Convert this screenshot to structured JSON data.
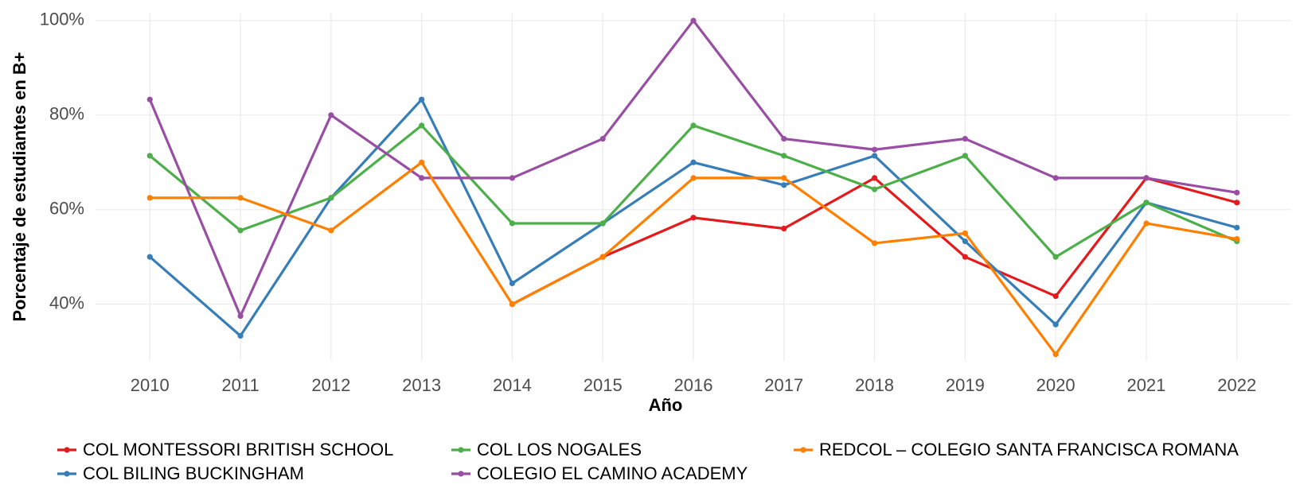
{
  "chart_data": {
    "type": "line",
    "ylabel": "Porcentaje de estudiantes en B+",
    "xlabel": "Año",
    "x": [
      2010,
      2011,
      2012,
      2013,
      2014,
      2015,
      2016,
      2017,
      2018,
      2019,
      2020,
      2021,
      2022
    ],
    "xlim": [
      2009.4,
      2022.6
    ],
    "xticks": [
      2010,
      2011,
      2012,
      2013,
      2014,
      2015,
      2016,
      2017,
      2018,
      2019,
      2020,
      2021,
      2022
    ],
    "ylim": [
      28,
      101.5
    ],
    "yticks": [
      {
        "value": 40,
        "label": "40%"
      },
      {
        "value": 60,
        "label": "60%"
      },
      {
        "value": 80,
        "label": "80%"
      },
      {
        "value": 100,
        "label": "100%"
      }
    ],
    "grid": true,
    "legend": "bottom",
    "series": [
      {
        "name": "COL  MONTESSORI BRITISH SCHOOL",
        "color": "#e41a1c",
        "values": [
          null,
          null,
          null,
          null,
          40,
          50,
          58.3,
          56,
          66.7,
          50,
          41.7,
          66.7,
          61.5
        ]
      },
      {
        "name": "COL BILING BUCKINGHAM",
        "color": "#377eb8",
        "values": [
          50,
          33.3,
          62.5,
          83.3,
          44.4,
          57.1,
          70,
          65.2,
          71.4,
          53.3,
          35.7,
          61.5,
          56.2
        ]
      },
      {
        "name": "COL LOS NOGALES",
        "color": "#4daf4a",
        "values": [
          71.4,
          55.6,
          62.5,
          77.8,
          57.1,
          57.1,
          77.8,
          71.4,
          64.3,
          71.4,
          50,
          61.5,
          53.3
        ]
      },
      {
        "name": "COLEGIO EL CAMINO ACADEMY",
        "color": "#984ea3",
        "values": [
          83.3,
          37.5,
          80,
          66.7,
          66.7,
          75,
          100,
          75,
          72.7,
          75,
          66.7,
          66.7,
          63.6
        ]
      },
      {
        "name": "REDCOL – COLEGIO SANTA FRANCISCA ROMANA",
        "color": "#ff7f00",
        "values": [
          62.5,
          62.5,
          55.6,
          70,
          40,
          50,
          66.7,
          66.7,
          52.9,
          55,
          29.4,
          57.1,
          53.8
        ]
      }
    ]
  }
}
